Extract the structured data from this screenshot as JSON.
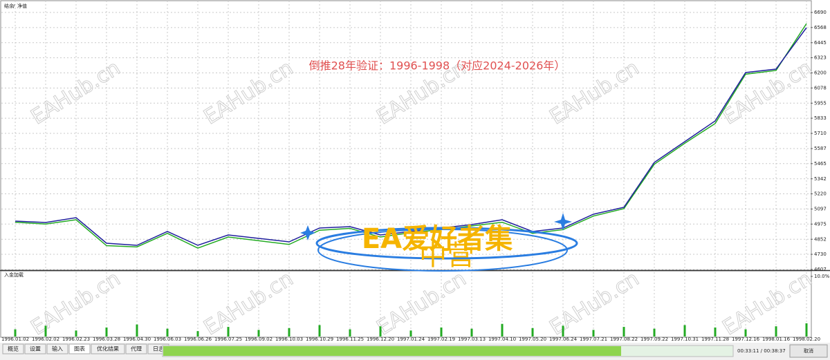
{
  "chart_data": [
    {
      "type": "line",
      "annotation": "倒推28年验证：1996-1998（对应2024-2026年）",
      "categories": [
        "1996.01.02",
        "1996.02.02",
        "1996.02.23",
        "1996.03.28",
        "1996.04.30",
        "1996.06.03",
        "1996.06.26",
        "1996.07.25",
        "1996.09.02",
        "1996.10.03",
        "1996.10.29",
        "1996.11.25",
        "1996.12.20",
        "1997.01.24",
        "1997.02.19",
        "1997.03.13",
        "1997.04.10",
        "1997.05.20",
        "1997.06.24",
        "1997.07.21",
        "1997.08.22",
        "1997.09.22",
        "1997.10.31",
        "1997.11.28",
        "1997.12.16",
        "1998.01.16",
        "1998.02.20"
      ],
      "series": [
        {
          "name": "结余",
          "color": "#1e1e9c",
          "values": [
            4999,
            4988,
            5027,
            4820,
            4803,
            4915,
            4803,
            4887,
            4859,
            4831,
            4943,
            4954,
            4887,
            4915,
            4943,
            4971,
            5010,
            4915,
            4943,
            5055,
            5111,
            5475,
            5643,
            5811,
            6203,
            6231,
            6567
          ]
        },
        {
          "name": "净值",
          "color": "#22aa22",
          "values": [
            4990,
            4975,
            5010,
            4800,
            4790,
            4900,
            4780,
            4870,
            4840,
            4810,
            4925,
            4940,
            4870,
            4905,
            4930,
            4960,
            4990,
            4900,
            4930,
            5040,
            5100,
            5460,
            5630,
            5790,
            6190,
            6220,
            6600
          ]
        }
      ],
      "ylim": [
        4607,
        6763
      ],
      "yticks": [
        4607,
        4730,
        4852,
        4975,
        5097,
        5220,
        5342,
        5465,
        5587,
        5710,
        5833,
        5955,
        6078,
        6200,
        6323,
        6445,
        6568,
        6690
      ],
      "grid": true
    },
    {
      "type": "bar",
      "label": "入金加载",
      "color": "#22aa22",
      "values": [
        1.2,
        1.8,
        1.0,
        1.5,
        2.0,
        1.3,
        0.9,
        1.6,
        1.1,
        1.4,
        1.9,
        1.2,
        1.7,
        1.0,
        1.5,
        1.3,
        2.1,
        1.4,
        1.8,
        1.1,
        1.6,
        1.3,
        1.9,
        1.5,
        1.2,
        1.7,
        2.2
      ],
      "ylim": [
        0,
        10
      ],
      "yticks": [
        {
          "value": 10,
          "label": "10.0%"
        }
      ]
    }
  ],
  "watermark": "EAHub.cn",
  "logo": [
    "EA爱好者集",
    "中营"
  ],
  "tabs": [
    "概览",
    "设置",
    "输入",
    "图表",
    "优化结果",
    "代理",
    "日志"
  ],
  "active_tab": 3,
  "status": {
    "elapsed": "00:33:11 / 00:38:37",
    "cancel": "取消"
  }
}
